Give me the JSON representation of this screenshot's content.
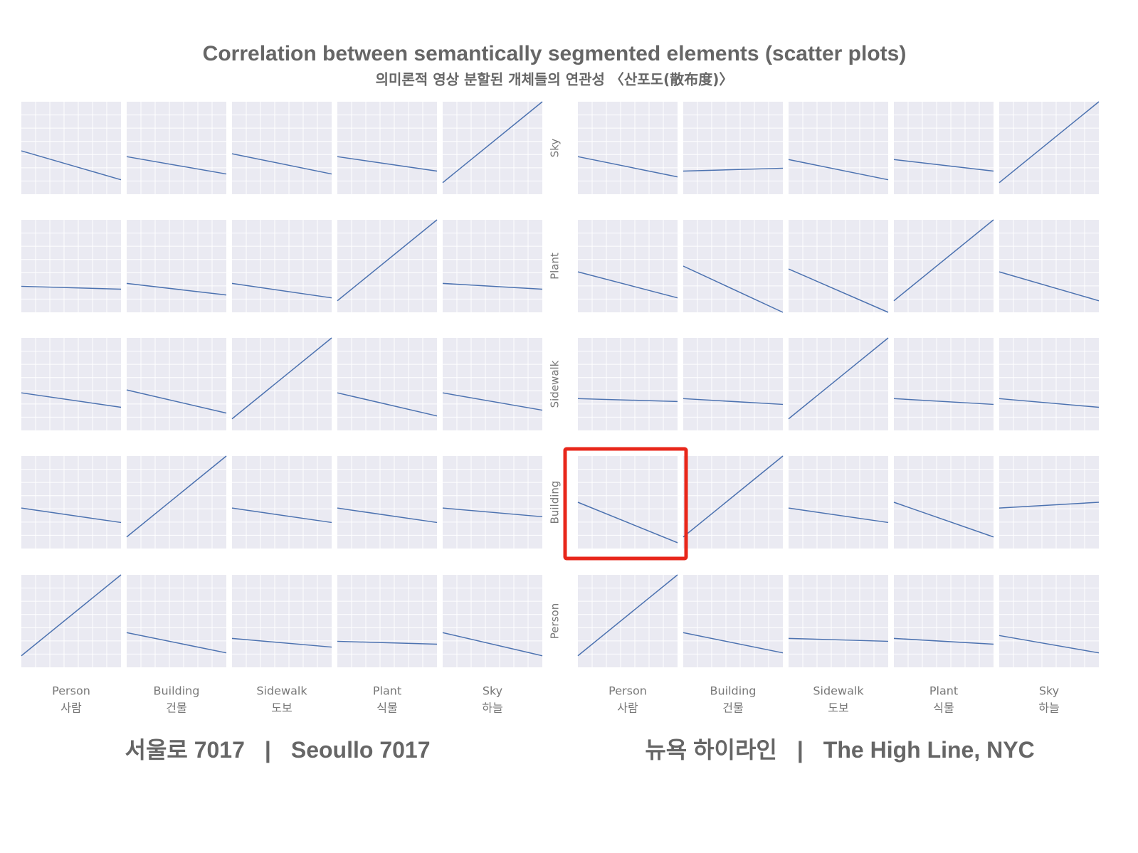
{
  "title": "Correlation between semantically segmented elements (scatter plots)",
  "subtitle": "의미론적 영상 분할된 개체들의 연관성 〈산포도(散布度)〉",
  "xlim": [
    -0.2,
    1.2
  ],
  "ylim": [
    -0.4,
    1.2
  ],
  "separator": "|",
  "matrices": [
    {
      "caption_ko": "서울로 7017",
      "caption_en": "Seoullo 7017",
      "row_labels": [],
      "column_labels": [
        {
          "en": "Person",
          "ko": "사람"
        },
        {
          "en": "Building",
          "ko": "건물"
        },
        {
          "en": "Sidewalk",
          "ko": "도보"
        },
        {
          "en": "Plant",
          "ko": "식물"
        },
        {
          "en": "Sky",
          "ko": "하늘"
        }
      ],
      "fits": [
        [
          [
            0.35,
            -0.15
          ],
          [
            0.25,
            -0.05
          ],
          [
            0.3,
            -0.05
          ],
          [
            0.25,
            0.0
          ],
          [
            -0.2,
            1.2
          ]
        ],
        [
          [
            0.05,
            0.0
          ],
          [
            0.1,
            -0.1
          ],
          [
            0.1,
            -0.15
          ],
          [
            -0.2,
            1.2
          ],
          [
            0.1,
            0.0
          ]
        ],
        [
          [
            0.25,
            0.0
          ],
          [
            0.3,
            -0.1
          ],
          [
            -0.2,
            1.2
          ],
          [
            0.25,
            -0.15
          ],
          [
            0.25,
            -0.05
          ]
        ],
        [
          [
            0.3,
            0.05
          ],
          [
            -0.2,
            1.2
          ],
          [
            0.3,
            0.05
          ],
          [
            0.3,
            0.05
          ],
          [
            0.3,
            0.15
          ]
        ],
        [
          [
            -0.2,
            1.2
          ],
          [
            0.2,
            -0.15
          ],
          [
            0.1,
            -0.05
          ],
          [
            0.05,
            0.0
          ],
          [
            0.2,
            -0.2
          ]
        ]
      ]
    },
    {
      "caption_ko": "뉴욕 하이라인",
      "caption_en": "The High Line, NYC",
      "row_labels": [
        "Sky",
        "Plant",
        "Sidewalk",
        "Building",
        "Person"
      ],
      "column_labels": [
        {
          "en": "Person",
          "ko": "사람"
        },
        {
          "en": "Building",
          "ko": "건물"
        },
        {
          "en": "Sidewalk",
          "ko": "도보"
        },
        {
          "en": "Plant",
          "ko": "식물"
        },
        {
          "en": "Sky",
          "ko": "하늘"
        }
      ],
      "fits": [
        [
          [
            0.25,
            -0.1
          ],
          [
            0.0,
            0.05
          ],
          [
            0.2,
            -0.15
          ],
          [
            0.2,
            0.0
          ],
          [
            -0.2,
            1.2
          ]
        ],
        [
          [
            0.3,
            -0.15
          ],
          [
            0.4,
            -0.4
          ],
          [
            0.35,
            -0.4
          ],
          [
            -0.2,
            1.2
          ],
          [
            0.3,
            -0.2
          ]
        ],
        [
          [
            0.15,
            0.1
          ],
          [
            0.15,
            0.05
          ],
          [
            -0.2,
            1.2
          ],
          [
            0.15,
            0.05
          ],
          [
            0.15,
            0.0
          ]
        ],
        [
          [
            0.4,
            -0.3
          ],
          [
            -0.2,
            1.2
          ],
          [
            0.3,
            0.05
          ],
          [
            0.4,
            -0.2
          ],
          [
            0.3,
            0.4
          ]
        ],
        [
          [
            -0.2,
            1.2
          ],
          [
            0.2,
            -0.15
          ],
          [
            0.1,
            0.05
          ],
          [
            0.1,
            0.0
          ],
          [
            0.15,
            -0.15
          ]
        ]
      ]
    }
  ]
}
